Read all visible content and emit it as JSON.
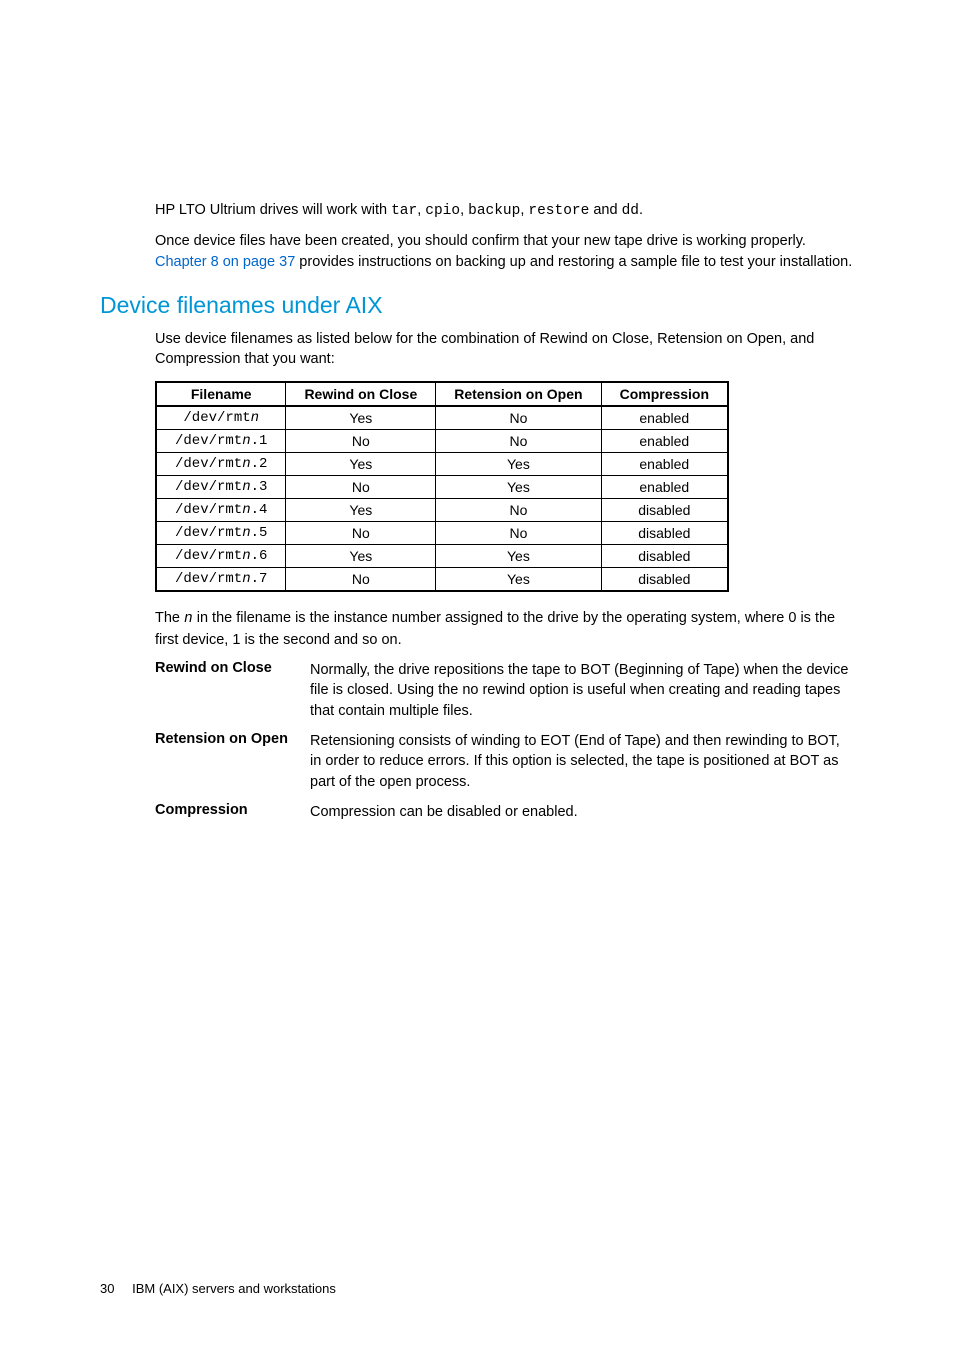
{
  "intro": {
    "line1_pre": "HP LTO Ultrium drives will work with ",
    "line1_codes": [
      "tar",
      "cpio",
      "backup",
      "restore",
      "dd"
    ],
    "line1_conj": " and ",
    "line1_end": ".",
    "line2_pre": "Once device files have been created, you should confirm that your new tape drive is working properly. ",
    "line2_link": "Chapter 8 on page 37",
    "line2_post": " provides instructions on backing up and restoring a sample file to test your installation."
  },
  "section": {
    "heading": "Device filenames under AIX",
    "intro": "Use device filenames as listed below for the combination of Rewind on Close, Retension on Open, and Compression that you want:"
  },
  "table": {
    "headers": [
      "Filename",
      "Rewind on Close",
      "Retension on Open",
      "Compression"
    ],
    "rows": [
      {
        "fname_pre": "/dev/rmt",
        "fname_suf": "",
        "rewind": "Yes",
        "reten": "No",
        "comp": "enabled"
      },
      {
        "fname_pre": "/dev/rmt",
        "fname_suf": ".1",
        "rewind": "No",
        "reten": "No",
        "comp": "enabled"
      },
      {
        "fname_pre": "/dev/rmt",
        "fname_suf": ".2",
        "rewind": "Yes",
        "reten": "Yes",
        "comp": "enabled"
      },
      {
        "fname_pre": "/dev/rmt",
        "fname_suf": ".3",
        "rewind": "No",
        "reten": "Yes",
        "comp": "enabled"
      },
      {
        "fname_pre": "/dev/rmt",
        "fname_suf": ".4",
        "rewind": "Yes",
        "reten": "No",
        "comp": "disabled"
      },
      {
        "fname_pre": "/dev/rmt",
        "fname_suf": ".5",
        "rewind": "No",
        "reten": "No",
        "comp": "disabled"
      },
      {
        "fname_pre": "/dev/rmt",
        "fname_suf": ".6",
        "rewind": "Yes",
        "reten": "Yes",
        "comp": "disabled"
      },
      {
        "fname_pre": "/dev/rmt",
        "fname_suf": ".7",
        "rewind": "No",
        "reten": "Yes",
        "comp": "disabled"
      }
    ],
    "n_glyph": "n"
  },
  "after_table": {
    "pre": "The ",
    "n": "n",
    "post": " in the filename is the instance number assigned to the drive by the operating system, where 0 is the first device, 1 is the second and so on."
  },
  "defs": [
    {
      "term": "Rewind on Close",
      "desc": "Normally, the drive repositions the tape to BOT (Beginning of Tape) when the device file is closed. Using the no rewind option is useful when creating and reading tapes that contain multiple files."
    },
    {
      "term": "Retension on Open",
      "desc": "Retensioning consists of winding to EOT (End of Tape) and then rewinding to BOT, in order to reduce errors. If this option is selected, the tape is positioned at BOT as part of the open process."
    },
    {
      "term": "Compression",
      "desc": "Compression can be disabled or enabled."
    }
  ],
  "footer": {
    "page": "30",
    "title": "IBM (AIX) servers and workstations"
  }
}
